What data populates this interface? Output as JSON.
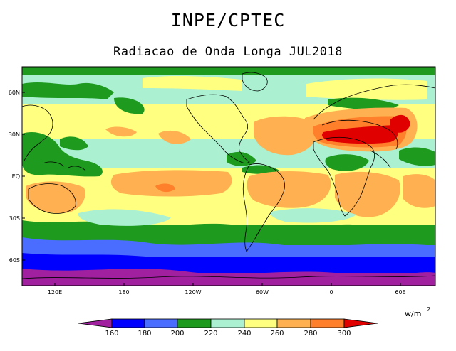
{
  "header": {
    "organization": "INPE/CPTEC",
    "title": "Radiacao de Onda Longa JUL2018"
  },
  "axes": {
    "lat_labels": [
      "60N",
      "30N",
      "EQ",
      "30S",
      "60S"
    ],
    "lon_labels": [
      "120E",
      "180",
      "120W",
      "60W",
      "0",
      "60E"
    ]
  },
  "units": {
    "base": "w/m",
    "exponent": "2"
  },
  "colorbar": {
    "ticks": [
      "160",
      "180",
      "200",
      "220",
      "240",
      "260",
      "280",
      "300"
    ],
    "colors": [
      "#a020a0",
      "#0000ff",
      "#4a6cff",
      "#1e9a1e",
      "#aaf0d1",
      "#ffff80",
      "#ffb050",
      "#ff7f2a",
      "#e00000"
    ]
  },
  "palette": {
    "p160": "#a020a0",
    "p180": "#0000ff",
    "p200": "#4a6cff",
    "p220": "#1e9a1e",
    "p240": "#aaf0d1",
    "p260": "#ffff80",
    "p280": "#ffb050",
    "p300": "#ff7f2a",
    "pmax": "#e00000"
  }
}
